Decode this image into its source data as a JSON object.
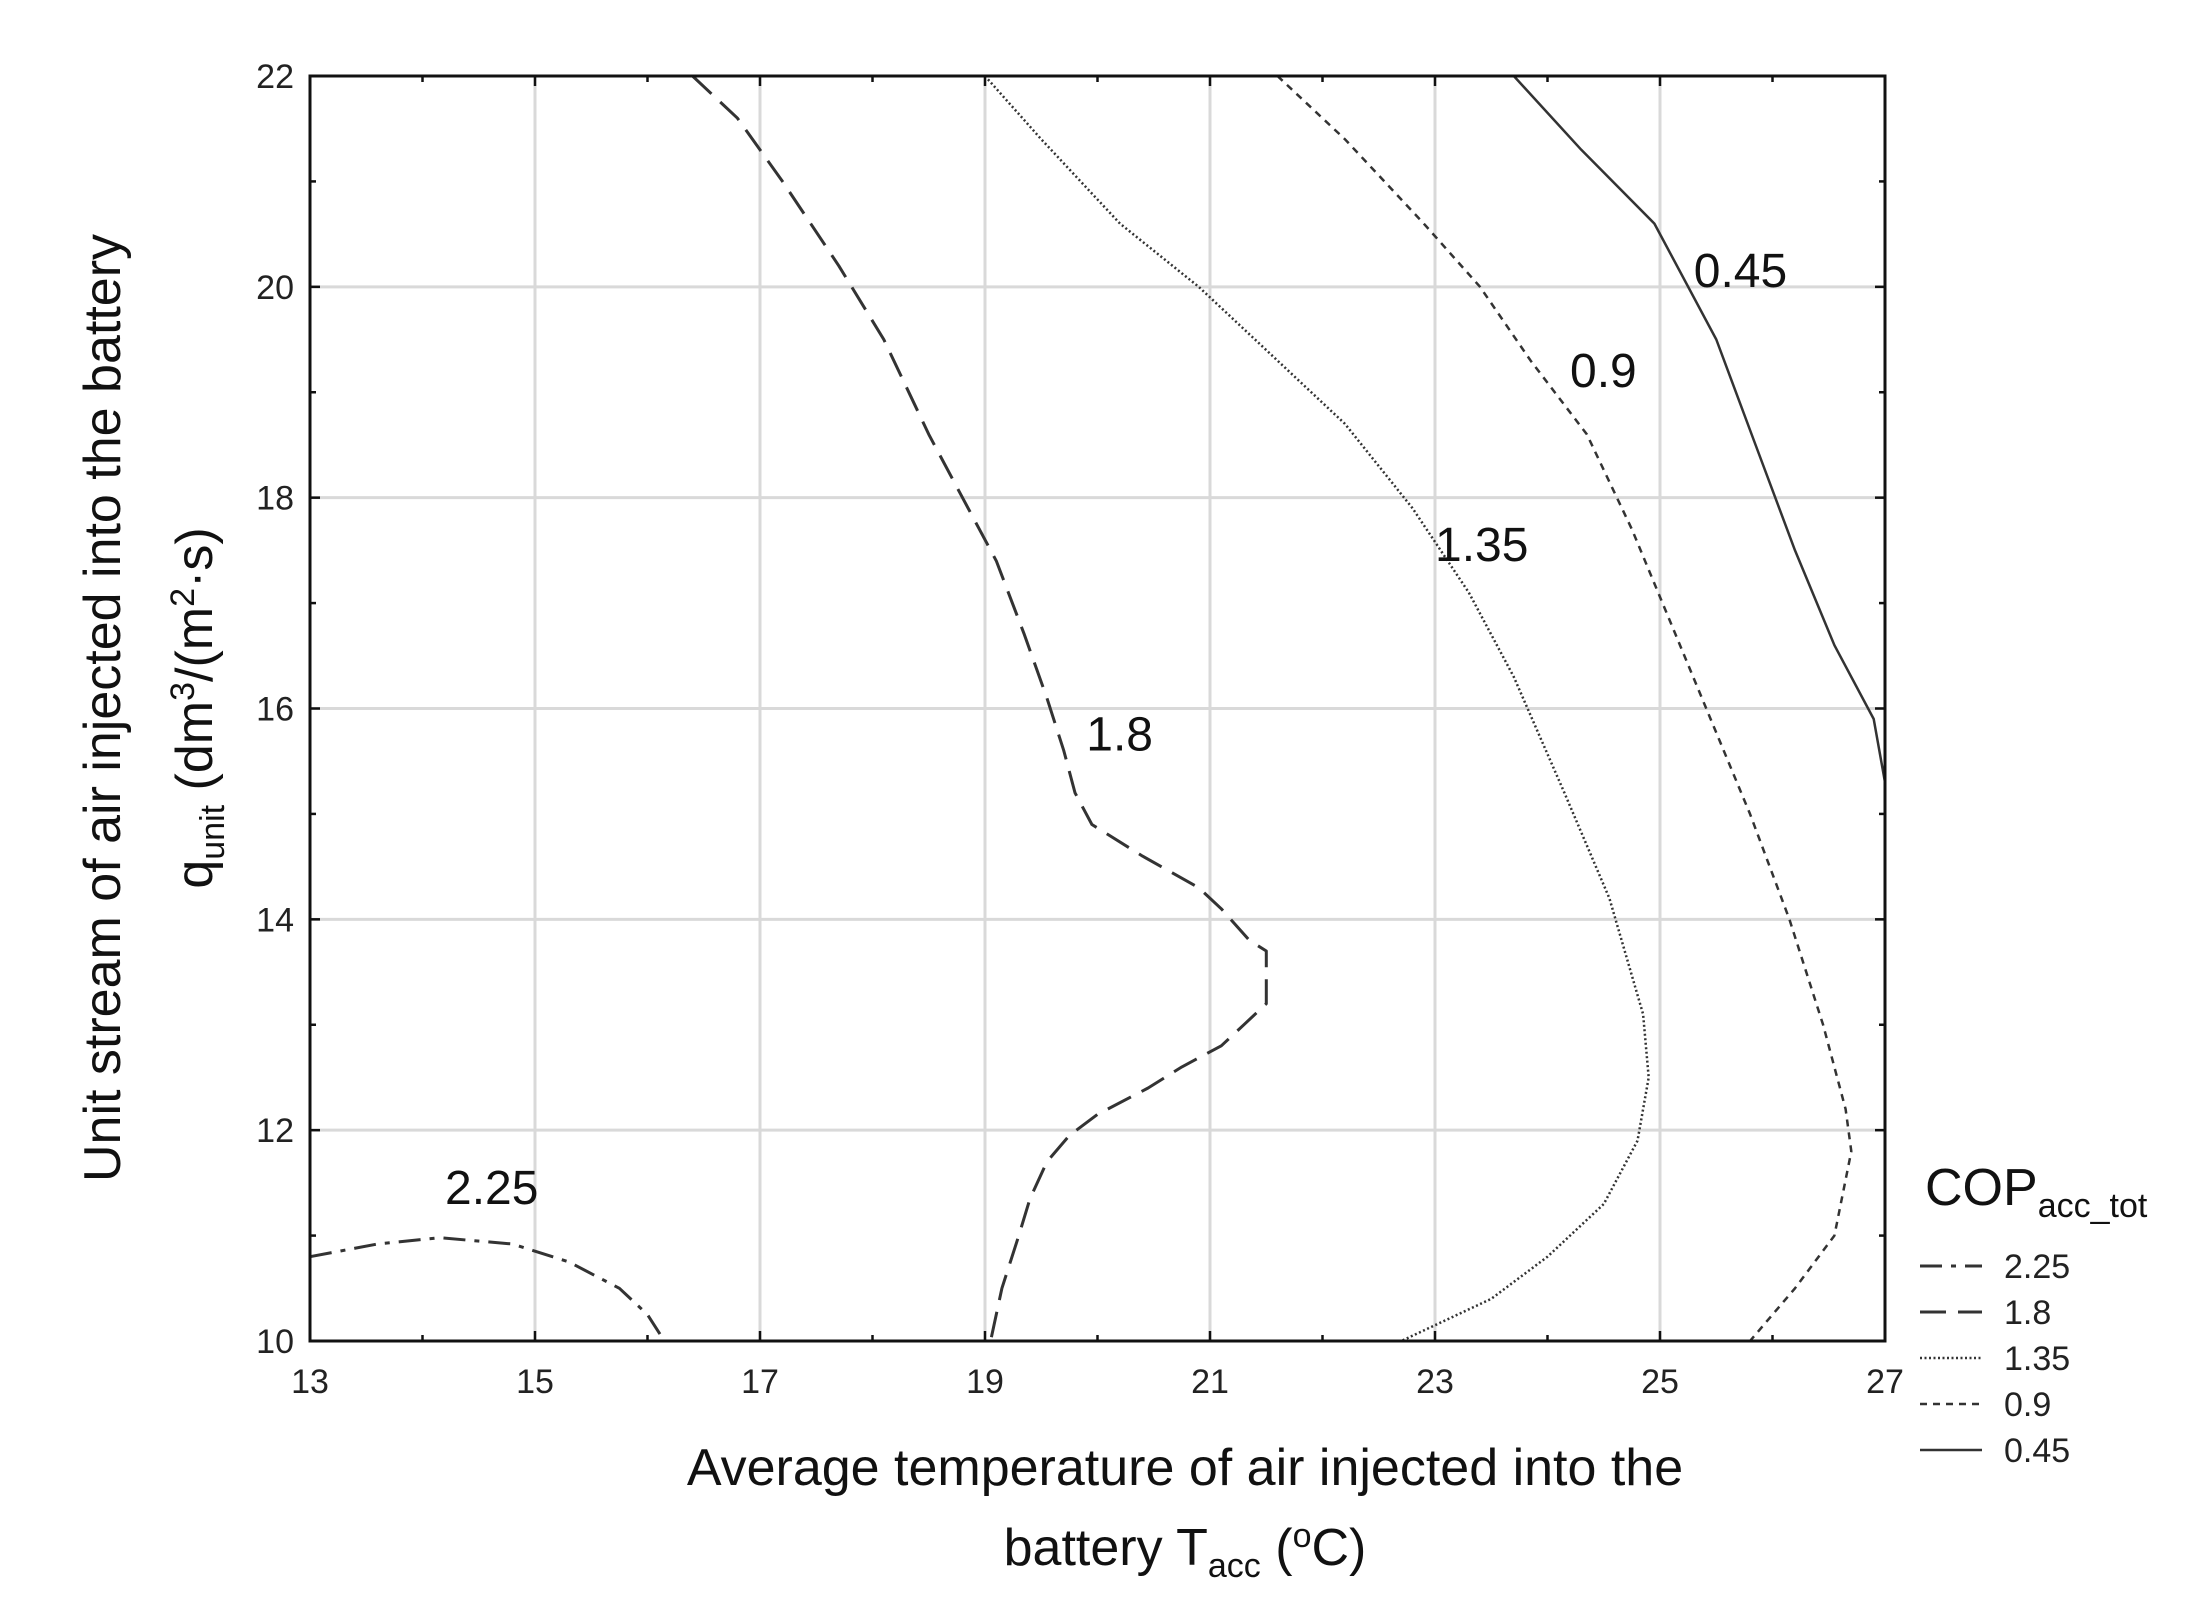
{
  "chart_data": {
    "type": "contour",
    "title": "",
    "xlabel": {
      "line1": "Average temperature of air injected into the",
      "line2_prefix": "battery T",
      "line2_sub": "acc",
      "line2_open": " (",
      "line2_sup": "o",
      "line2_suffix": "C)"
    },
    "ylabel": {
      "line1": "Unit stream of air injected into the battery",
      "line2_q": "q",
      "line2_sub": "unit",
      "line2_a": " (dm",
      "line2_sup1": "3",
      "line2_b": "/(m",
      "line2_sup2": "2",
      "line2_c": "·s)"
    },
    "xlim": [
      13,
      27
    ],
    "ylim": [
      10,
      22
    ],
    "xticks": [
      "13",
      "15",
      "17",
      "19",
      "21",
      "23",
      "25",
      "27"
    ],
    "yticks": [
      "10",
      "12",
      "14",
      "16",
      "18",
      "20",
      "22"
    ],
    "grid": true,
    "legend": {
      "position": "right",
      "title_main": "COP",
      "title_sub": "acc_tot"
    },
    "series": [
      {
        "name": "2.25",
        "style": "dashdot",
        "label": "2.25",
        "label_at": [
          14.2,
          11.3
        ],
        "points": [
          [
            13.0,
            10.8
          ],
          [
            13.6,
            10.92
          ],
          [
            14.15,
            10.98
          ],
          [
            14.8,
            10.92
          ],
          [
            15.3,
            10.75
          ],
          [
            15.75,
            10.5
          ],
          [
            16.0,
            10.25
          ],
          [
            16.15,
            10.0
          ]
        ]
      },
      {
        "name": "1.8",
        "style": "longdash",
        "label": "1.8",
        "label_at": [
          19.9,
          15.6
        ],
        "points": [
          [
            16.4,
            22.0
          ],
          [
            16.8,
            21.6
          ],
          [
            17.2,
            21.0
          ],
          [
            17.7,
            20.2
          ],
          [
            18.1,
            19.5
          ],
          [
            18.5,
            18.6
          ],
          [
            18.8,
            18.0
          ],
          [
            19.1,
            17.4
          ],
          [
            19.35,
            16.7
          ],
          [
            19.55,
            16.1
          ],
          [
            19.7,
            15.6
          ],
          [
            19.8,
            15.2
          ],
          [
            19.95,
            14.9
          ],
          [
            20.4,
            14.6
          ],
          [
            20.9,
            14.3
          ],
          [
            21.1,
            14.1
          ],
          [
            21.35,
            13.8
          ],
          [
            21.5,
            13.7
          ],
          [
            21.5,
            13.2
          ],
          [
            21.3,
            13.0
          ],
          [
            21.1,
            12.8
          ],
          [
            20.75,
            12.6
          ],
          [
            20.45,
            12.4
          ],
          [
            20.0,
            12.15
          ],
          [
            19.75,
            11.95
          ],
          [
            19.55,
            11.7
          ],
          [
            19.4,
            11.35
          ],
          [
            19.3,
            11.0
          ],
          [
            19.15,
            10.5
          ],
          [
            19.05,
            10.0
          ]
        ]
      },
      {
        "name": "1.35",
        "style": "dotted",
        "label": "1.35",
        "label_at": [
          23.0,
          17.4
        ],
        "points": [
          [
            19.0,
            22.0
          ],
          [
            19.5,
            21.4
          ],
          [
            20.2,
            20.6
          ],
          [
            20.9,
            20.0
          ],
          [
            21.5,
            19.4
          ],
          [
            22.2,
            18.7
          ],
          [
            22.8,
            17.9
          ],
          [
            23.3,
            17.1
          ],
          [
            23.7,
            16.3
          ],
          [
            24.15,
            15.2
          ],
          [
            24.55,
            14.2
          ],
          [
            24.85,
            13.1
          ],
          [
            24.9,
            12.5
          ],
          [
            24.8,
            11.9
          ],
          [
            24.5,
            11.3
          ],
          [
            24.0,
            10.8
          ],
          [
            23.5,
            10.4
          ],
          [
            22.7,
            10.0
          ]
        ]
      },
      {
        "name": "0.9",
        "style": "shortdash",
        "label": "0.9",
        "label_at": [
          24.2,
          19.05
        ],
        "points": [
          [
            21.6,
            22.0
          ],
          [
            22.2,
            21.4
          ],
          [
            22.9,
            20.6
          ],
          [
            23.4,
            20.0
          ],
          [
            23.85,
            19.3
          ],
          [
            24.35,
            18.6
          ],
          [
            24.75,
            17.7
          ],
          [
            25.1,
            16.8
          ],
          [
            25.45,
            15.9
          ],
          [
            25.8,
            15.0
          ],
          [
            26.15,
            14.0
          ],
          [
            26.45,
            13.0
          ],
          [
            26.65,
            12.2
          ],
          [
            26.7,
            11.8
          ],
          [
            26.55,
            11.0
          ],
          [
            26.2,
            10.5
          ],
          [
            25.8,
            10.0
          ]
        ]
      },
      {
        "name": "0.45",
        "style": "solid",
        "label": "0.45",
        "label_at": [
          25.3,
          20.0
        ],
        "points": [
          [
            23.7,
            22.0
          ],
          [
            24.3,
            21.3
          ],
          [
            24.95,
            20.6
          ],
          [
            25.5,
            19.5
          ],
          [
            25.85,
            18.5
          ],
          [
            26.2,
            17.5
          ],
          [
            26.55,
            16.6
          ],
          [
            26.9,
            15.9
          ],
          [
            27.0,
            15.3
          ]
        ]
      }
    ]
  }
}
